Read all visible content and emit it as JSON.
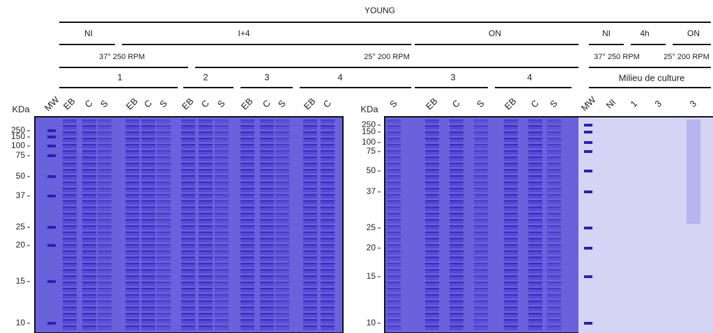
{
  "title": "YOUNG",
  "conditions": [
    "NI",
    "I+4",
    "ON",
    "NI",
    "4h",
    "ON"
  ],
  "temperatures": [
    "37° 250 RPM",
    "25° 200 RPM",
    "37° 250 RPM",
    "25° 200 RPM"
  ],
  "medium": "Milieu de culture",
  "groups": [
    "1",
    "2",
    "3",
    "4",
    "3",
    "4"
  ],
  "gels": [
    {
      "unit": "KDa",
      "markers": [
        "250",
        "150",
        "100",
        "75",
        "50",
        "37",
        "25",
        "20",
        "15",
        "10"
      ],
      "lanes": [
        "MW",
        "EB",
        "C",
        "S",
        "EB",
        "C",
        "S",
        "EB",
        "C",
        "S",
        "EB",
        "C",
        "S",
        "EB",
        "C"
      ]
    },
    {
      "unit": "KDa",
      "markers": [
        "250",
        "150",
        "100",
        "75",
        "50",
        "37",
        "25",
        "20",
        "15",
        "10"
      ],
      "lanes": [
        "S",
        "EB",
        "C",
        "S",
        "EB",
        "C",
        "S",
        "MW",
        "NI",
        "1",
        "3",
        "3"
      ]
    }
  ]
}
